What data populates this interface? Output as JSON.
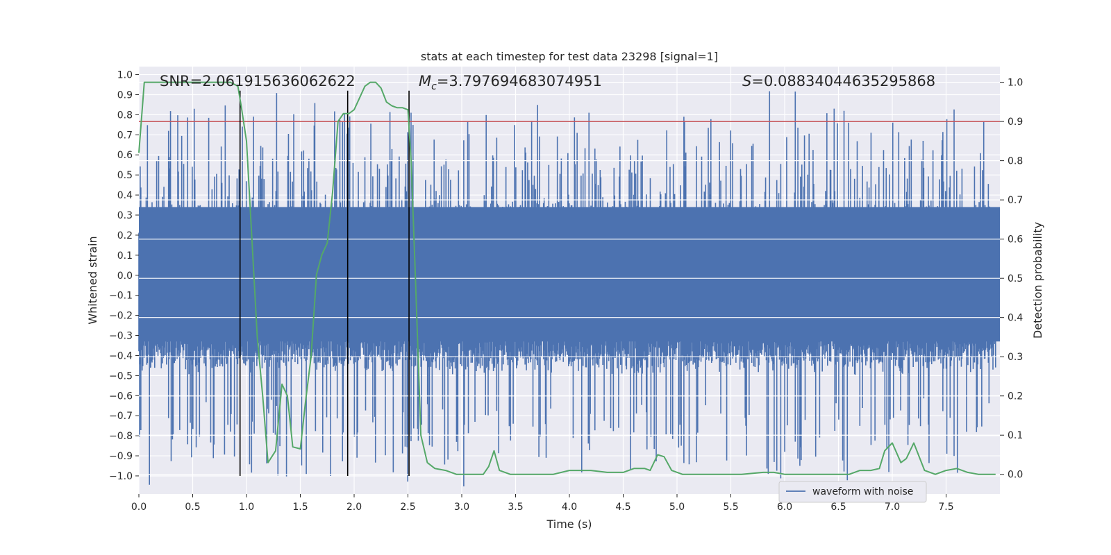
{
  "chart_data": {
    "type": "line",
    "title": "stats at each timestep for test data 23298 [signal=1]",
    "xlabel": "Time (s)",
    "ylabel_left": "Whitened strain",
    "ylabel_right": "Detection probability",
    "xlim": [
      0.0,
      8.0
    ],
    "ylim_left": [
      -1.09,
      1.04
    ],
    "ylim_right": [
      -0.05,
      1.04
    ],
    "x_ticks": [
      "0.0",
      "0.5",
      "1.0",
      "1.5",
      "2.0",
      "2.5",
      "3.0",
      "3.5",
      "4.0",
      "4.5",
      "5.0",
      "5.5",
      "6.0",
      "6.5",
      "7.0",
      "7.5"
    ],
    "y_left_ticks": [
      "1.0",
      "0.9",
      "0.8",
      "0.7",
      "0.6",
      "0.5",
      "0.4",
      "0.3",
      "0.2",
      "0.1",
      "0.0",
      "−0.1",
      "−0.2",
      "−0.3",
      "−0.4",
      "−0.5",
      "−0.6",
      "−0.7",
      "−0.8",
      "−0.9",
      "−1.0"
    ],
    "y_right_ticks": [
      "0.0",
      "0.1",
      "0.2",
      "0.3",
      "0.4",
      "0.5",
      "0.6",
      "0.7",
      "0.8",
      "0.9",
      "1.0"
    ],
    "annotations": {
      "snr": "SNR=2.061915636062622",
      "mc_symbol": "M",
      "mc_sub": "c",
      "mc_value": "=3.797694683074951",
      "s_symbol": "S",
      "s_value": "=0.08834044635295868"
    },
    "threshold": {
      "value": 0.9,
      "axis": "right",
      "color": "#c44e52"
    },
    "vertical_lines": [
      0.94,
      1.94,
      2.51
    ],
    "vertical_line_range": [
      -1.0,
      0.92
    ],
    "legend": {
      "label": "waveform with noise",
      "placement": "lower-right"
    },
    "series": [
      {
        "name": "waveform with noise",
        "axis": "left",
        "color": "#4c72b0",
        "style": "dense noise, approx amplitude ±0.35 with spikes up to ±0.9"
      },
      {
        "name": "detection probability",
        "axis": "right",
        "color": "#55a868",
        "x": [
          0.0,
          0.05,
          0.12,
          0.2,
          0.5,
          0.85,
          0.92,
          0.95,
          1.0,
          1.05,
          1.1,
          1.15,
          1.2,
          1.27,
          1.33,
          1.38,
          1.43,
          1.5,
          1.55,
          1.6,
          1.65,
          1.7,
          1.75,
          1.8,
          1.85,
          1.9,
          1.95,
          2.0,
          2.05,
          2.1,
          2.15,
          2.2,
          2.25,
          2.3,
          2.35,
          2.4,
          2.45,
          2.5,
          2.53,
          2.57,
          2.62,
          2.68,
          2.75,
          2.85,
          2.95,
          3.05,
          3.15,
          3.2,
          3.25,
          3.3,
          3.35,
          3.45,
          3.55,
          3.7,
          3.85,
          4.0,
          4.1,
          4.2,
          4.35,
          4.5,
          4.6,
          4.7,
          4.75,
          4.82,
          4.88,
          4.95,
          5.05,
          5.15,
          5.25,
          5.4,
          5.6,
          5.8,
          5.9,
          6.0,
          6.3,
          6.6,
          6.7,
          6.8,
          6.88,
          6.93,
          7.0,
          7.08,
          7.13,
          7.2,
          7.3,
          7.4,
          7.5,
          7.6,
          7.7,
          7.8,
          7.96
        ],
        "y": [
          0.82,
          1.0,
          1.0,
          1.0,
          1.0,
          1.0,
          0.99,
          0.94,
          0.85,
          0.6,
          0.35,
          0.2,
          0.03,
          0.06,
          0.23,
          0.2,
          0.07,
          0.065,
          0.19,
          0.3,
          0.51,
          0.56,
          0.59,
          0.72,
          0.9,
          0.92,
          0.92,
          0.93,
          0.96,
          0.99,
          1.0,
          1.0,
          0.985,
          0.95,
          0.94,
          0.935,
          0.935,
          0.93,
          0.8,
          0.5,
          0.1,
          0.03,
          0.015,
          0.01,
          0.0,
          0.0,
          0.0,
          0.0,
          0.02,
          0.06,
          0.01,
          0.0,
          0.0,
          0.0,
          0.0,
          0.01,
          0.01,
          0.01,
          0.005,
          0.005,
          0.015,
          0.015,
          0.01,
          0.05,
          0.045,
          0.01,
          0.0,
          0.0,
          0.0,
          0.0,
          0.0,
          0.005,
          0.005,
          0.0,
          0.0,
          0.0,
          0.01,
          0.01,
          0.015,
          0.06,
          0.08,
          0.03,
          0.04,
          0.08,
          0.01,
          0.0,
          0.01,
          0.015,
          0.005,
          0.0,
          0.0
        ]
      }
    ]
  }
}
